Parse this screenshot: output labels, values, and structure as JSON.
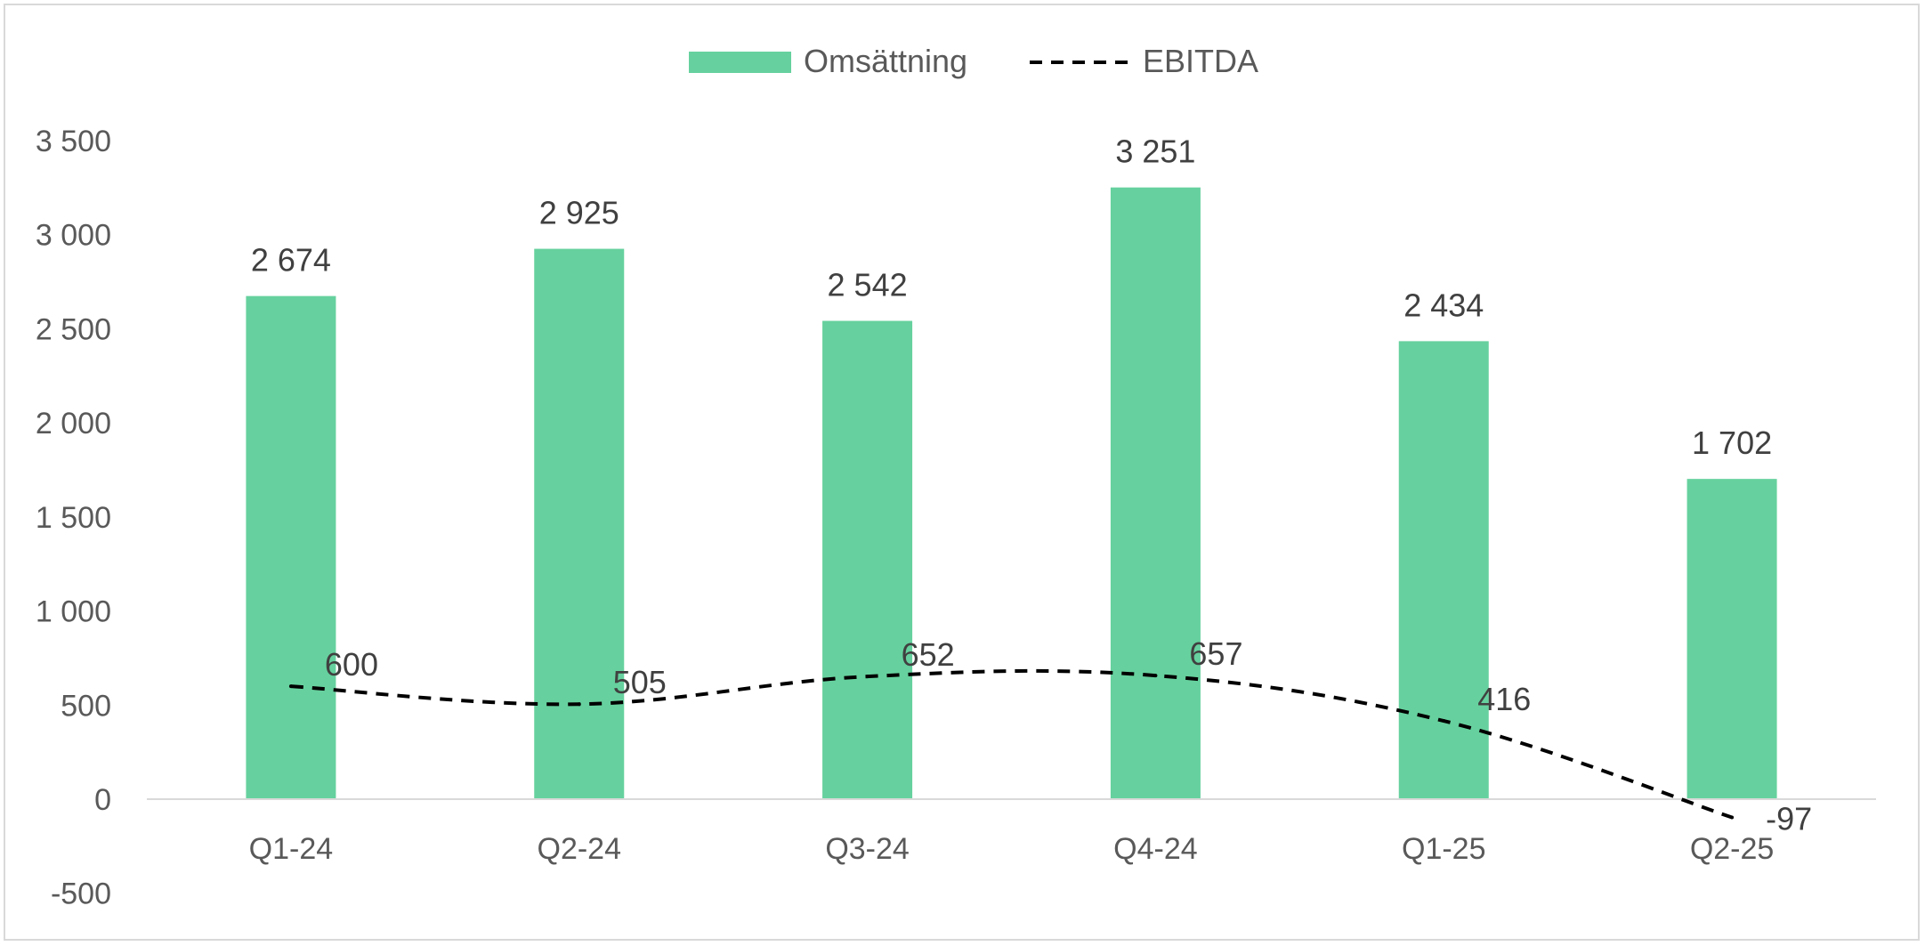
{
  "chart_data": {
    "type": "bar",
    "categories": [
      "Q1-24",
      "Q2-24",
      "Q3-24",
      "Q4-24",
      "Q1-25",
      "Q2-25"
    ],
    "series": [
      {
        "name": "Omsättning",
        "type": "bar",
        "color": "#66d19e",
        "values": [
          2674,
          2925,
          2542,
          3251,
          2434,
          1702
        ],
        "labels": [
          "2 674",
          "2 925",
          "2 542",
          "3 251",
          "2 434",
          "1 702"
        ]
      },
      {
        "name": "EBITDA",
        "type": "line",
        "line_style": "dashed",
        "smooth": true,
        "color": "#000000",
        "values": [
          600,
          505,
          652,
          657,
          416,
          -97
        ],
        "labels": [
          "600",
          "505",
          "652",
          "657",
          "416",
          "-97"
        ]
      }
    ],
    "ylim": [
      -500,
      3500
    ],
    "yticks": [
      -500,
      0,
      500,
      1000,
      1500,
      2000,
      2500,
      3000,
      3500
    ],
    "ytick_labels": [
      "-500",
      "0",
      "500",
      "1 000",
      "1 500",
      "2 000",
      "2 500",
      "3 000",
      "3 500"
    ],
    "grid": false,
    "legend": "top-center",
    "title": "",
    "xlabel": "",
    "ylabel": ""
  }
}
